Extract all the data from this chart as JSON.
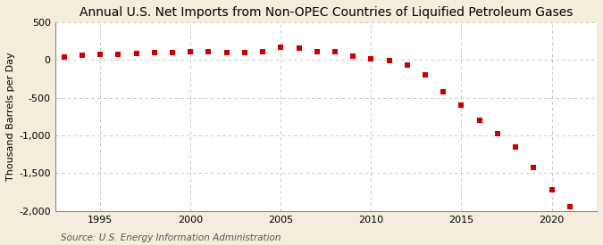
{
  "title": "Annual U.S. Net Imports from Non-OPEC Countries of Liquified Petroleum Gases",
  "ylabel": "Thousand Barrels per Day",
  "source": "Source: U.S. Energy Information Administration",
  "background_color": "#f5eddc",
  "plot_background": "#ffffff",
  "years": [
    1993,
    1994,
    1995,
    1996,
    1997,
    1998,
    1999,
    2000,
    2001,
    2002,
    2003,
    2004,
    2005,
    2006,
    2007,
    2008,
    2009,
    2010,
    2011,
    2012,
    2013,
    2014,
    2015,
    2016,
    2017,
    2018,
    2019,
    2020,
    2021
  ],
  "values": [
    40,
    65,
    70,
    75,
    85,
    95,
    95,
    110,
    105,
    100,
    100,
    115,
    165,
    155,
    115,
    110,
    55,
    20,
    -5,
    -70,
    -200,
    -420,
    -600,
    -800,
    -980,
    -1150,
    -1420,
    -1720,
    -1940
  ],
  "marker_color": "#cc0000",
  "marker": "s",
  "marker_size": 4,
  "ylim": [
    -2000,
    500
  ],
  "xlim": [
    1992.5,
    2022.5
  ],
  "yticks": [
    -2000,
    -1500,
    -1000,
    -500,
    0,
    500
  ],
  "xticks": [
    1995,
    2000,
    2005,
    2010,
    2015,
    2020
  ],
  "grid_color": "#bbbbbb",
  "title_fontsize": 10,
  "label_fontsize": 8,
  "tick_fontsize": 8,
  "source_fontsize": 7.5
}
